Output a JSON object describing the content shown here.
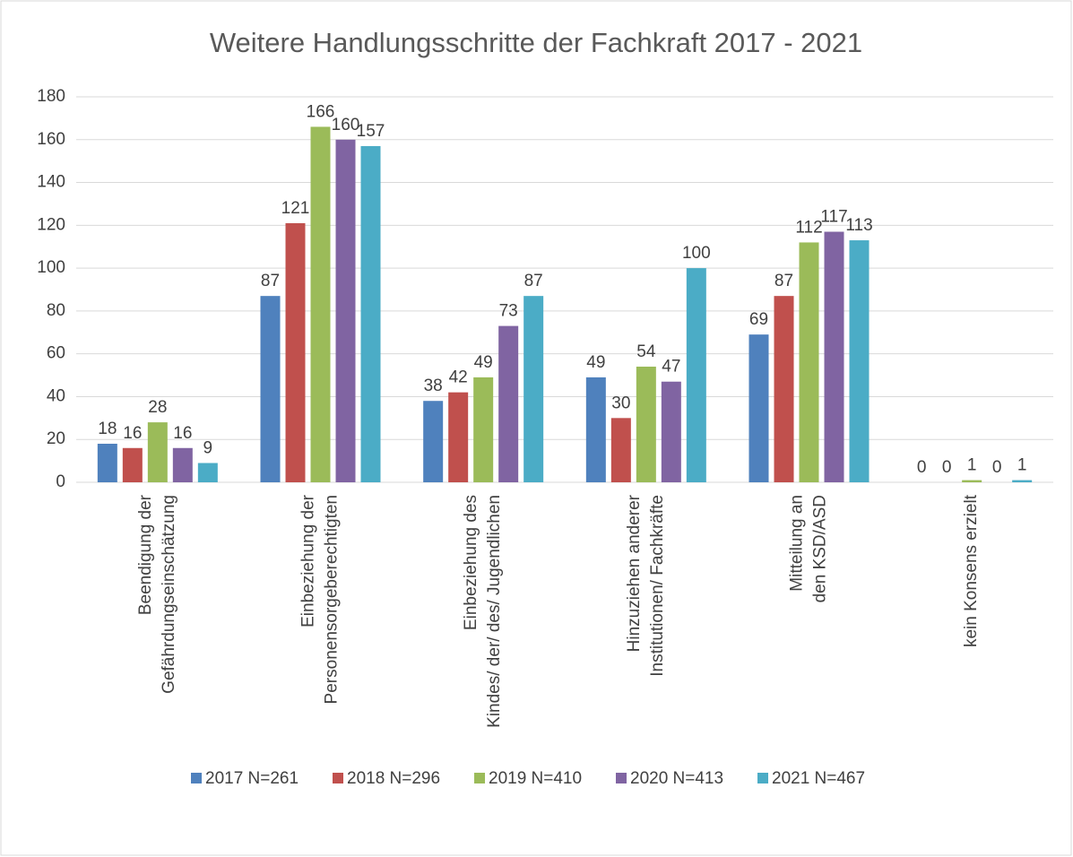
{
  "chart_data": {
    "type": "bar",
    "title": "Weitere Handlungsschritte der Fachkraft 2017 - 2021",
    "categories": [
      "Beendigung der\nGefährdungseinschätzung",
      "Einbeziehung der\nPersonensorgeberechtigten",
      "Einbeziehung des\nKindes/ der/ des/ Jugendlichen",
      "Hinzuziehen anderer\nInstitutionen/ Fachkräfte",
      "Mitteilung an\nden KSD/ASD",
      "kein Konsens erzielt"
    ],
    "series": [
      {
        "name": "2017 N=261",
        "color": "#4f81bd",
        "values": [
          18,
          87,
          38,
          49,
          69,
          0
        ]
      },
      {
        "name": "2018 N=296",
        "color": "#c0504d",
        "values": [
          16,
          121,
          42,
          30,
          87,
          0
        ]
      },
      {
        "name": "2019 N=410",
        "color": "#9bbb59",
        "values": [
          28,
          166,
          49,
          54,
          112,
          1
        ]
      },
      {
        "name": "2020 N=413",
        "color": "#8064a2",
        "values": [
          16,
          160,
          73,
          47,
          117,
          0
        ]
      },
      {
        "name": "2021 N=467",
        "color": "#4bacc6",
        "values": [
          9,
          157,
          87,
          100,
          113,
          1
        ]
      }
    ],
    "ylim": [
      0,
      180
    ],
    "yticks": [
      0,
      20,
      40,
      60,
      80,
      100,
      120,
      140,
      160,
      180
    ],
    "grid": true,
    "legend": "bottom"
  }
}
